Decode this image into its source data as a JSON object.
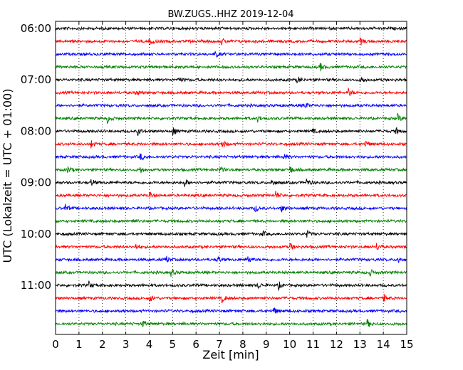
{
  "chart_data": {
    "type": "line",
    "title": "BW.ZUGS..HHZ 2019-12-04",
    "xlabel": "Zeit  [min]",
    "ylabel": "UTC (Lokalzeit = UTC + 01:00)",
    "xlim": [
      0,
      15
    ],
    "x_ticks": [
      "0",
      "1",
      "2",
      "3",
      "4",
      "5",
      "6",
      "7",
      "8",
      "9",
      "10",
      "11",
      "12",
      "13",
      "14",
      "15"
    ],
    "y_ticks": [
      "06:00",
      "07:00",
      "08:00",
      "09:00",
      "10:00",
      "11:00"
    ],
    "grid": "vertical dotted",
    "trace_minutes": 15,
    "trace_colors": [
      "#000000",
      "#ff0000",
      "#0000ff",
      "#008000"
    ],
    "series": [
      {
        "start": "06:00",
        "events": []
      },
      {
        "start": "06:15",
        "events": [
          4.0,
          7.05,
          13.0
        ]
      },
      {
        "start": "06:30",
        "events": [
          6.8
        ]
      },
      {
        "start": "06:45",
        "events": [
          11.3
        ]
      },
      {
        "start": "07:00",
        "events": [
          5.2,
          10.3,
          13.0
        ]
      },
      {
        "start": "07:15",
        "events": [
          3.4,
          12.5
        ]
      },
      {
        "start": "07:30",
        "events": [
          10.6
        ]
      },
      {
        "start": "07:45",
        "events": [
          2.2,
          8.6,
          14.6
        ]
      },
      {
        "start": "08:00",
        "events": [
          3.5,
          5.0,
          10.9,
          14.5
        ]
      },
      {
        "start": "08:15",
        "events": [
          1.5,
          7.1,
          13.2
        ]
      },
      {
        "start": "08:30",
        "events": [
          3.6,
          9.7
        ]
      },
      {
        "start": "08:45",
        "events": [
          0.5,
          3.6,
          7.0,
          10.0
        ]
      },
      {
        "start": "09:00",
        "events": [
          1.5,
          5.5,
          9.2,
          10.7
        ]
      },
      {
        "start": "09:15",
        "events": [
          4.0,
          9.4
        ]
      },
      {
        "start": "09:30",
        "events": [
          0.4,
          8.5,
          9.6
        ]
      },
      {
        "start": "09:45",
        "events": [
          3.2
        ]
      },
      {
        "start": "10:00",
        "events": [
          8.8,
          10.7
        ]
      },
      {
        "start": "10:15",
        "events": [
          3.4,
          10.0,
          13.7
        ]
      },
      {
        "start": "10:30",
        "events": [
          4.7,
          6.9,
          8.2,
          14.6
        ]
      },
      {
        "start": "10:45",
        "events": [
          4.9,
          13.4
        ]
      },
      {
        "start": "11:00",
        "events": [
          1.4,
          8.6,
          9.5
        ]
      },
      {
        "start": "11:15",
        "events": [
          4.0,
          7.1,
          14.0
        ]
      },
      {
        "start": "11:30",
        "events": [
          9.3
        ]
      },
      {
        "start": "11:45",
        "events": [
          3.7,
          13.3
        ]
      }
    ]
  }
}
